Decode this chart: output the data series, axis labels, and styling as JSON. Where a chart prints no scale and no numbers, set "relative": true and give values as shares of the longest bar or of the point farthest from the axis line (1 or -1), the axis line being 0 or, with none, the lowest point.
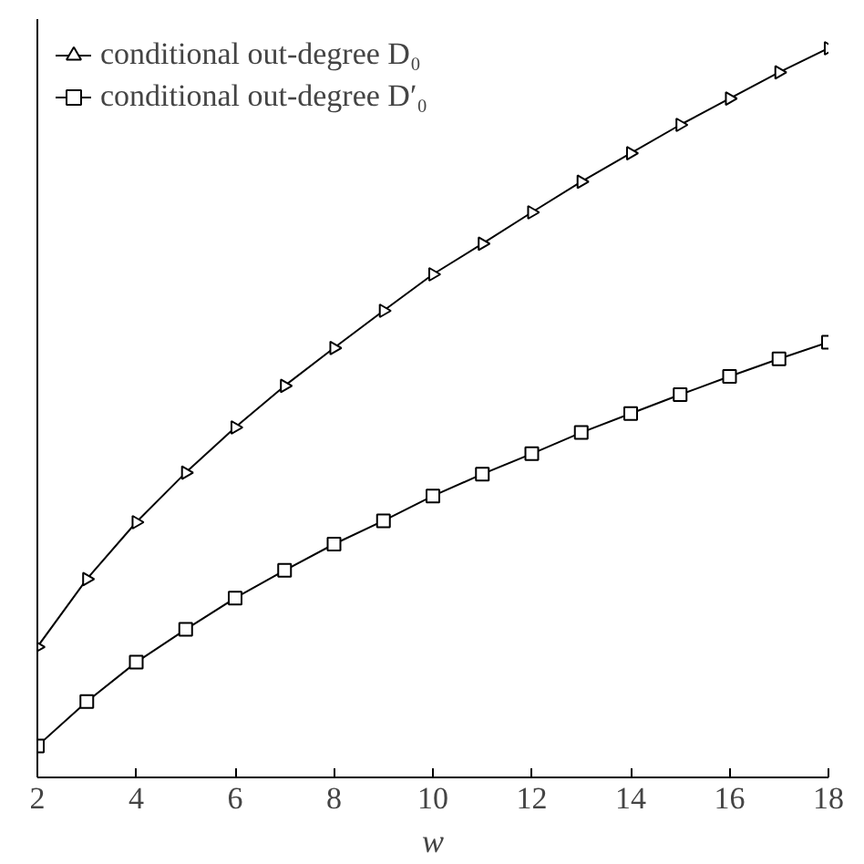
{
  "chart_data": {
    "type": "line",
    "relative": true,
    "xlabel": "w",
    "x": [
      2,
      3,
      4,
      5,
      6,
      7,
      8,
      9,
      10,
      11,
      12,
      13,
      14,
      15,
      16,
      17,
      18
    ],
    "xlim": [
      2,
      18
    ],
    "xticks": [
      2,
      4,
      6,
      8,
      10,
      12,
      14,
      16,
      18
    ],
    "legend": "top left",
    "grid": false,
    "line_style": "solid",
    "series": [
      {
        "name": "conditional out-degree D₀",
        "color": "#000000",
        "marker": "triangle",
        "values": [
          0.179,
          0.272,
          0.35,
          0.418,
          0.48,
          0.537,
          0.589,
          0.64,
          0.69,
          0.732,
          0.775,
          0.817,
          0.856,
          0.895,
          0.931,
          0.967,
          1
        ]
      },
      {
        "name": "conditional out-degree D′₀",
        "color": "#000000",
        "marker": "square",
        "values": [
          0.043,
          0.104,
          0.158,
          0.203,
          0.246,
          0.284,
          0.32,
          0.352,
          0.386,
          0.416,
          0.444,
          0.473,
          0.499,
          0.525,
          0.55,
          0.574,
          0.597
        ]
      }
    ]
  }
}
